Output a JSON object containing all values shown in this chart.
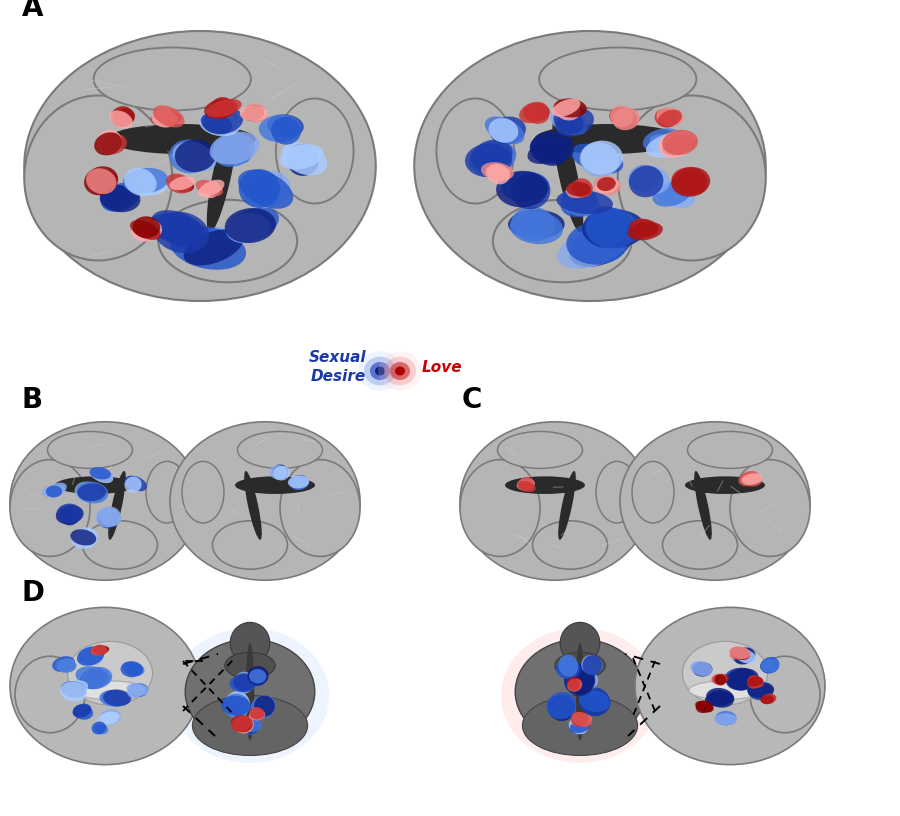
{
  "background_color": "#ffffff",
  "panel_labels": [
    "A",
    "B",
    "C",
    "D"
  ],
  "panel_label_color": "#000000",
  "panel_label_fontsize": 20,
  "panel_label_fontweight": "bold",
  "legend_blue_label": "Sexual\nDesire",
  "legend_red_label": "Love",
  "legend_blue_color": "#1a3aaa",
  "legend_red_color": "#cc0000",
  "legend_fontsize": 11,
  "legend_fontstyle": "italic",
  "legend_fontweight": "bold",
  "figsize": [
    9.0,
    8.16
  ],
  "dpi": 100,
  "brain_light": "#c8c8c8",
  "brain_mid": "#a8a8a8",
  "brain_dark": "#787878",
  "sulcus_color": "#303030",
  "blue_dark": "#0d2080",
  "blue_mid": "#2244cc",
  "blue_light": "#6688dd",
  "blue_pale": "#aabbee",
  "red_dark": "#aa0000",
  "red_mid": "#cc2222",
  "red_light": "#ee5555",
  "red_pale": "#ffaaaa"
}
